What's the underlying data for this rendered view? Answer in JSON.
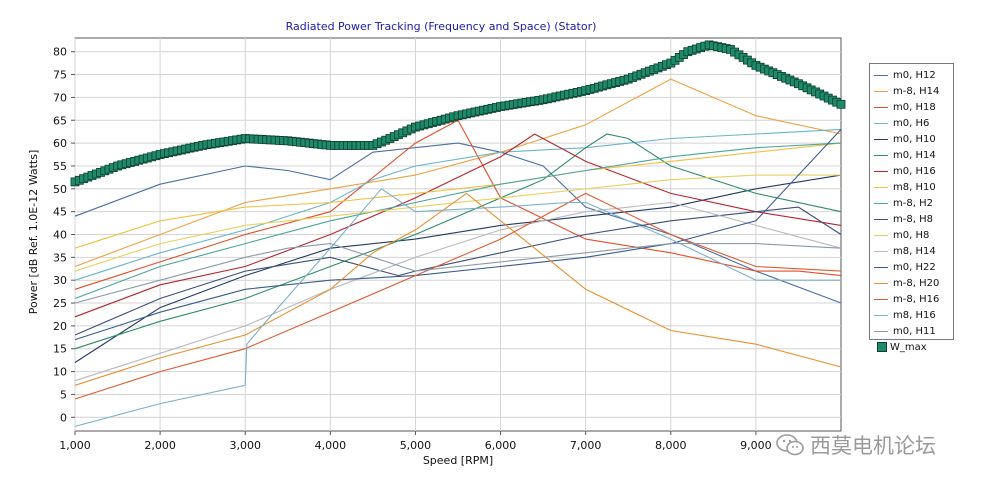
{
  "chart_data": {
    "type": "line",
    "title": "Radiated Power Tracking (Frequency and Space) (Stator)",
    "xlabel": "Speed [RPM]",
    "ylabel": "Power [dB Ref. 1.0E-12 Watts]",
    "xlim": [
      1000,
      10000
    ],
    "ylim": [
      -3,
      83
    ],
    "xticks": [
      1000,
      2000,
      3000,
      4000,
      5000,
      6000,
      7000,
      8000,
      9000
    ],
    "xtick_labels": [
      "1,000",
      "2,000",
      "3,000",
      "4,000",
      "5,000",
      "6,000",
      "7,000",
      "8,000",
      "9,000"
    ],
    "yticks": [
      0,
      5,
      10,
      15,
      20,
      25,
      30,
      35,
      40,
      45,
      50,
      55,
      60,
      65,
      70,
      75,
      80
    ],
    "ytick_labels": [
      "0",
      "5",
      "10",
      "15",
      "20",
      "25",
      "30",
      "35",
      "40",
      "45",
      "50",
      "55",
      "60",
      "65",
      "70",
      "75",
      "80"
    ],
    "grid": true,
    "legend_position": "right",
    "series": [
      {
        "name": "m0, H12",
        "color": "#4a6fa5",
        "x": [
          1000,
          2000,
          3000,
          3500,
          4000,
          4500,
          5500,
          6000,
          6500,
          7000,
          8000,
          9000,
          10000
        ],
        "y": [
          44,
          51,
          55,
          54,
          52,
          58,
          60,
          58,
          55,
          46,
          40,
          32,
          25
        ]
      },
      {
        "name": "m-8, H14",
        "color": "#f0a040",
        "x": [
          1000,
          2000,
          3000,
          4000,
          5000,
          6000,
          7000,
          8000,
          9000,
          10000
        ],
        "y": [
          33,
          40,
          47,
          50,
          53,
          58,
          64,
          74,
          66,
          62
        ]
      },
      {
        "name": "m0, H18",
        "color": "#e2502a",
        "x": [
          1000,
          2000,
          3000,
          4000,
          5000,
          5500,
          6000,
          7000,
          8000,
          9000,
          9500,
          10000
        ],
        "y": [
          28,
          34,
          40,
          45,
          60,
          65,
          48,
          39,
          36,
          32,
          32,
          31
        ]
      },
      {
        "name": "m0, H6",
        "color": "#6ab5c8",
        "x": [
          1000,
          2000,
          3000,
          4000,
          4500,
          5000,
          6000,
          7000,
          8000,
          9000,
          10000
        ],
        "y": [
          30,
          36,
          41,
          47,
          52,
          55,
          58,
          59,
          61,
          62,
          63
        ]
      },
      {
        "name": "m0, H10",
        "color": "#223a68",
        "x": [
          1000,
          2000,
          3000,
          4000,
          5000,
          6000,
          7000,
          8000,
          9000,
          10000
        ],
        "y": [
          12,
          24,
          31,
          37,
          39,
          42,
          44,
          46,
          50,
          53
        ]
      },
      {
        "name": "m0, H14",
        "color": "#2e8b6a",
        "x": [
          1000,
          2000,
          3000,
          4000,
          5000,
          6000,
          6500,
          7000,
          7250,
          7500,
          8000,
          9000,
          10000
        ],
        "y": [
          15,
          21,
          26,
          33,
          40,
          48,
          52,
          59,
          62,
          61,
          55,
          49,
          45
        ]
      },
      {
        "name": "m0, H16",
        "color": "#b8232f",
        "x": [
          1000,
          2000,
          3000,
          4000,
          5000,
          6000,
          6400,
          7000,
          8000,
          9000,
          10000
        ],
        "y": [
          22,
          29,
          33,
          40,
          48,
          57,
          62,
          56,
          49,
          45,
          42
        ]
      },
      {
        "name": "m8, H10",
        "color": "#f2c040",
        "x": [
          1000,
          2000,
          3000,
          4000,
          5000,
          6000,
          7000,
          8000,
          9000,
          10000
        ],
        "y": [
          37,
          43,
          46,
          47,
          49,
          51,
          54,
          56,
          58,
          60
        ]
      },
      {
        "name": "m-8, H2",
        "color": "#4aa59a",
        "x": [
          1000,
          2000,
          3000,
          4000,
          5000,
          6000,
          7000,
          8000,
          9000,
          10000
        ],
        "y": [
          26,
          33,
          38,
          43,
          47,
          51,
          54,
          57,
          59,
          60
        ]
      },
      {
        "name": "m-8, H8",
        "color": "#3a4f7a",
        "x": [
          1000,
          2000,
          3000,
          4000,
          4800,
          5000,
          5500,
          6000,
          7000,
          8000,
          9000,
          9500,
          10000
        ],
        "y": [
          18,
          26,
          32,
          35,
          31,
          32,
          34,
          36,
          40,
          43,
          45,
          46,
          40
        ]
      },
      {
        "name": "m0, H8",
        "color": "#e8d060",
        "x": [
          1000,
          2000,
          3000,
          4000,
          5000,
          6000,
          7000,
          8000,
          9000,
          10000
        ],
        "y": [
          32,
          38,
          42,
          44,
          46,
          48,
          50,
          52,
          53,
          53
        ]
      },
      {
        "name": "m8, H14",
        "color": "#b8b8c0",
        "x": [
          1000,
          2000,
          3000,
          4000,
          5000,
          6000,
          7000,
          8000,
          9000,
          10000
        ],
        "y": [
          8,
          14,
          20,
          28,
          35,
          41,
          45,
          47,
          42,
          37
        ]
      },
      {
        "name": "m0, H22",
        "color": "#3a5a90",
        "x": [
          1000,
          2000,
          3000,
          4000,
          5000,
          6000,
          7000,
          8000,
          9000,
          10000
        ],
        "y": [
          17,
          23,
          28,
          30,
          31,
          33,
          35,
          38,
          43,
          63
        ]
      },
      {
        "name": "m-8, H20",
        "color": "#e89030",
        "x": [
          1000,
          2000,
          3000,
          4000,
          4500,
          5000,
          5600,
          6000,
          7000,
          8000,
          9000,
          10000
        ],
        "y": [
          7,
          13,
          18,
          28,
          36,
          41,
          49,
          43,
          28,
          19,
          16,
          11
        ]
      },
      {
        "name": "m-8, H16",
        "color": "#e05a30",
        "x": [
          1000,
          2000,
          3000,
          4000,
          5000,
          6000,
          7000,
          8000,
          9000,
          10000
        ],
        "y": [
          4,
          10,
          15,
          23,
          31,
          39,
          49,
          40,
          33,
          32
        ]
      },
      {
        "name": "m8, H16",
        "color": "#7ab0c8",
        "x": [
          1000,
          2000,
          3000,
          3020,
          3200,
          4000,
          4600,
          5000,
          6000,
          6800,
          7000,
          8000,
          9000,
          10000
        ],
        "y": [
          -2,
          3,
          7,
          16,
          20,
          37,
          50,
          45,
          46,
          47,
          47,
          39,
          30,
          30
        ]
      },
      {
        "name": "m0, H11",
        "color": "#8a9aaa",
        "x": [
          1000,
          2000,
          3000,
          3500,
          4000,
          4500,
          5000,
          6000,
          7000,
          8000,
          9000,
          10000
        ],
        "y": [
          25,
          30,
          35,
          37,
          38,
          35,
          32,
          34,
          36,
          38,
          38,
          37
        ]
      }
    ],
    "max_series": {
      "name": "W_max",
      "color": "#1f8a6a",
      "edge_color": "#0b3d2e",
      "x": [
        1000,
        1500,
        2000,
        2500,
        3000,
        3500,
        4000,
        4500,
        4700,
        5000,
        5500,
        6000,
        6500,
        7000,
        7500,
        8000,
        8200,
        8450,
        8700,
        9000,
        9500,
        10000
      ],
      "y": [
        51.5,
        55,
        57.5,
        59.5,
        61,
        60.5,
        59.5,
        59.5,
        61,
        63.5,
        66,
        68,
        69.5,
        71.5,
        74,
        77.5,
        80,
        81.5,
        80.5,
        77,
        73,
        68.5
      ]
    }
  },
  "watermark": "西莫电机论坛"
}
